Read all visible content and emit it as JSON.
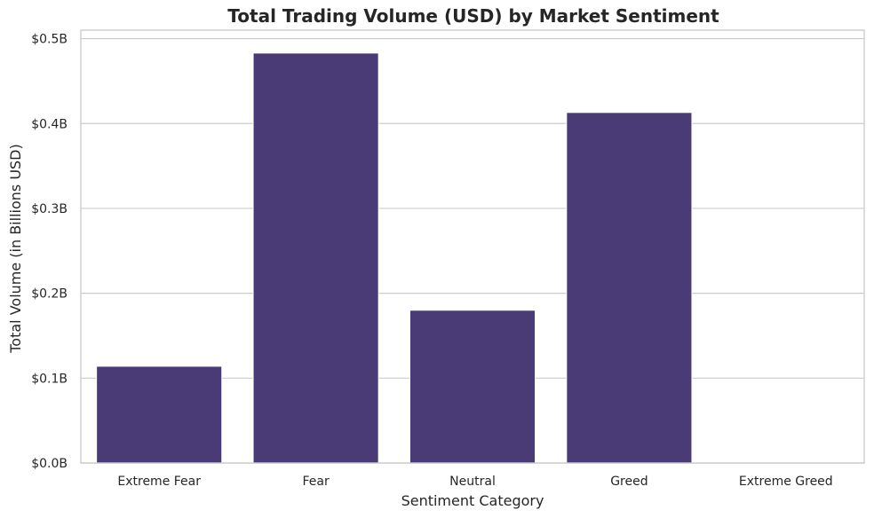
{
  "chart_data": {
    "type": "bar",
    "title": "Total Trading Volume (USD) by Market Sentiment",
    "xlabel": "Sentiment Category",
    "ylabel": "Total Volume (in Billions USD)",
    "categories": [
      "Extreme Fear",
      "Fear",
      "Neutral",
      "Greed",
      "Extreme Greed"
    ],
    "values": [
      0.114,
      0.483,
      0.18,
      0.413,
      0.0
    ],
    "ylim": [
      0,
      0.51
    ],
    "yticks": [
      0.0,
      0.1,
      0.2,
      0.3,
      0.4,
      0.5
    ],
    "ytick_labels": [
      "$0.0B",
      "$0.1B",
      "$0.2B",
      "$0.3B",
      "$0.4B",
      "$0.5B"
    ],
    "bar_color": "#4a3a76",
    "grid": true,
    "legend": "none"
  }
}
